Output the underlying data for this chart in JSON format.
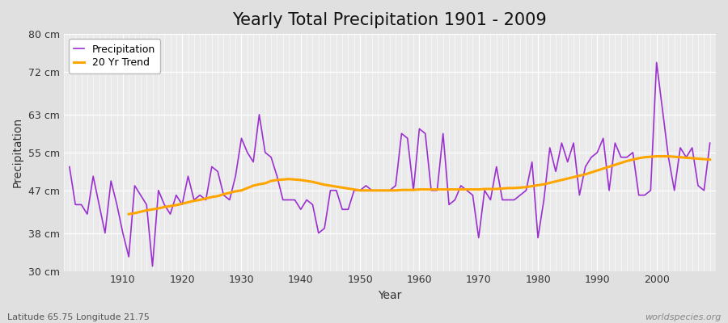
{
  "title": "Yearly Total Precipitation 1901 - 2009",
  "xlabel": "Year",
  "ylabel": "Precipitation",
  "caption_left": "Latitude 65.75 Longitude 21.75",
  "caption_right": "worldspecies.org",
  "years": [
    1901,
    1902,
    1903,
    1904,
    1905,
    1906,
    1907,
    1908,
    1909,
    1910,
    1911,
    1912,
    1913,
    1914,
    1915,
    1916,
    1917,
    1918,
    1919,
    1920,
    1921,
    1922,
    1923,
    1924,
    1925,
    1926,
    1927,
    1928,
    1929,
    1930,
    1931,
    1932,
    1933,
    1934,
    1935,
    1936,
    1937,
    1938,
    1939,
    1940,
    1941,
    1942,
    1943,
    1944,
    1945,
    1946,
    1947,
    1948,
    1949,
    1950,
    1951,
    1952,
    1953,
    1954,
    1955,
    1956,
    1957,
    1958,
    1959,
    1960,
    1961,
    1962,
    1963,
    1964,
    1965,
    1966,
    1967,
    1968,
    1969,
    1970,
    1971,
    1972,
    1973,
    1974,
    1975,
    1976,
    1977,
    1978,
    1979,
    1980,
    1981,
    1982,
    1983,
    1984,
    1985,
    1986,
    1987,
    1988,
    1989,
    1990,
    1991,
    1992,
    1993,
    1994,
    1995,
    1996,
    1997,
    1998,
    1999,
    2000,
    2001,
    2002,
    2003,
    2004,
    2005,
    2006,
    2007,
    2008,
    2009
  ],
  "precipitation": [
    52,
    44,
    44,
    42,
    50,
    44,
    38,
    49,
    44,
    38,
    33,
    48,
    46,
    44,
    31,
    47,
    44,
    42,
    46,
    44,
    50,
    45,
    46,
    45,
    52,
    51,
    46,
    45,
    50,
    58,
    55,
    53,
    63,
    55,
    54,
    50,
    45,
    45,
    45,
    43,
    45,
    44,
    38,
    39,
    47,
    47,
    43,
    43,
    47,
    47,
    48,
    47,
    47,
    47,
    47,
    48,
    59,
    58,
    47,
    60,
    59,
    47,
    47,
    59,
    44,
    45,
    48,
    47,
    46,
    37,
    47,
    45,
    52,
    45,
    45,
    45,
    46,
    47,
    53,
    37,
    45,
    56,
    51,
    57,
    53,
    57,
    46,
    52,
    54,
    55,
    58,
    47,
    57,
    54,
    54,
    55,
    46,
    46,
    47,
    74,
    64,
    54,
    47,
    56,
    54,
    56,
    48,
    47,
    57
  ],
  "trend": [
    null,
    null,
    null,
    null,
    null,
    null,
    null,
    null,
    null,
    null,
    42.0,
    42.2,
    42.5,
    42.8,
    43.0,
    43.2,
    43.5,
    43.7,
    43.9,
    44.2,
    44.5,
    44.8,
    45.0,
    45.3,
    45.6,
    45.8,
    46.2,
    46.5,
    46.8,
    47.0,
    47.5,
    48.0,
    48.3,
    48.5,
    49.0,
    49.2,
    49.3,
    49.4,
    49.3,
    49.2,
    49.0,
    48.8,
    48.5,
    48.2,
    48.0,
    47.8,
    47.6,
    47.4,
    47.2,
    47.0,
    47.0,
    47.0,
    47.0,
    47.0,
    47.0,
    47.0,
    47.1,
    47.1,
    47.1,
    47.2,
    47.2,
    47.2,
    47.2,
    47.2,
    47.2,
    47.2,
    47.2,
    47.2,
    47.2,
    47.2,
    47.3,
    47.3,
    47.3,
    47.4,
    47.5,
    47.5,
    47.6,
    47.7,
    47.9,
    48.1,
    48.3,
    48.6,
    48.9,
    49.2,
    49.5,
    49.8,
    50.1,
    50.4,
    50.8,
    51.2,
    51.6,
    52.0,
    52.4,
    52.8,
    53.2,
    53.5,
    53.8,
    54.0,
    54.1,
    54.2,
    54.2,
    54.2,
    54.1,
    54.0,
    53.9,
    53.8,
    53.7,
    53.6,
    53.5
  ],
  "precip_color": "#9B30D0",
  "trend_color": "#FFA500",
  "bg_color": "#E0E0E0",
  "plot_bg_color": "#EAEAEA",
  "grid_color": "#FFFFFF",
  "ylim": [
    30,
    80
  ],
  "yticks": [
    30,
    38,
    47,
    55,
    63,
    72,
    80
  ],
  "ytick_labels": [
    "30 cm",
    "38 cm",
    "47 cm",
    "55 cm",
    "63 cm",
    "72 cm",
    "80 cm"
  ],
  "xticks": [
    1910,
    1920,
    1930,
    1940,
    1950,
    1960,
    1970,
    1980,
    1990,
    2000
  ],
  "xlim": [
    1900,
    2010
  ],
  "title_fontsize": 15,
  "axis_label_fontsize": 10,
  "tick_fontsize": 9,
  "legend_fontsize": 9,
  "caption_fontsize": 8
}
